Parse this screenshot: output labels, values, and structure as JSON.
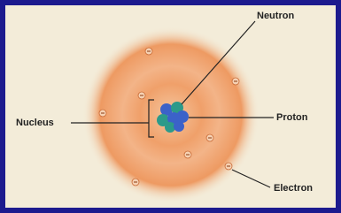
{
  "labels": {
    "neutron": "Neutron",
    "nucleus": "Nucleus",
    "proton": "Proton",
    "electron": "Electron"
  }
}
